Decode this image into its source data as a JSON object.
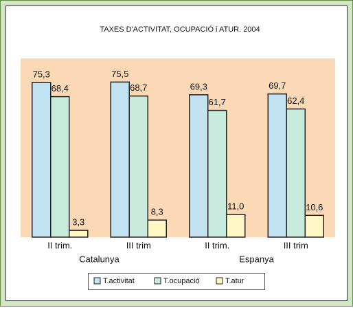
{
  "chart_data": {
    "type": "bar",
    "title": "TAXES D'ACTIVITAT, OCUPACIÓ i ATUR. 2004",
    "categories": [
      "II trim.",
      "III trim",
      "II trim.",
      "III trim"
    ],
    "group_labels": [
      "Catalunya",
      "Espanya"
    ],
    "series": [
      {
        "name": "T.activitat",
        "color": "#c2e2f2",
        "values": [
          75.3,
          75.5,
          69.3,
          69.7
        ],
        "value_labels": [
          "75,3",
          "75,5",
          "69,3",
          "69,7"
        ]
      },
      {
        "name": "T.ocupació",
        "color": "#c8eadc",
        "values": [
          68.4,
          68.7,
          61.7,
          62.4
        ],
        "value_labels": [
          "68,4",
          "68,7",
          "61,7",
          "62,4"
        ]
      },
      {
        "name": "T.atur",
        "color": "#fff8c4",
        "values": [
          3.3,
          8.3,
          11.0,
          10.6
        ],
        "value_labels": [
          "3,3",
          "8,3",
          "11,0",
          "10,6"
        ]
      }
    ],
    "ylim": [
      0,
      87
    ]
  }
}
